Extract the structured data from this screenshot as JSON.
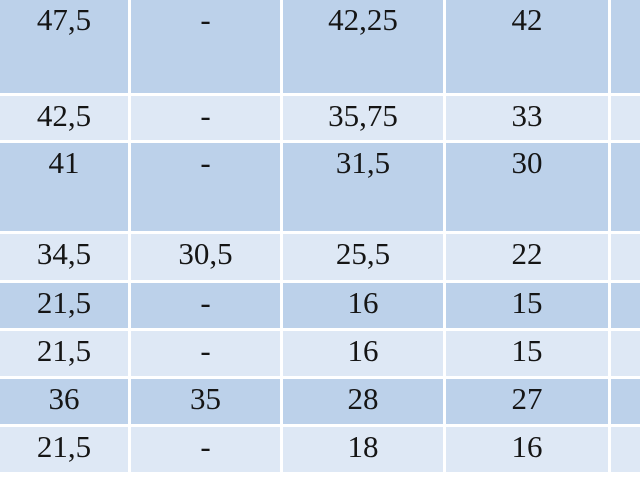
{
  "table": {
    "decimal_separator": ",",
    "num_columns": 5,
    "rows": [
      [
        "47,5",
        "-",
        "42,25",
        "42",
        ""
      ],
      [
        "42,5",
        "-",
        "35,75",
        "33",
        ""
      ],
      [
        "41",
        "-",
        "31,5",
        "30",
        ""
      ],
      [
        "34,5",
        "30,5",
        "25,5",
        "22",
        ""
      ],
      [
        "21,5",
        "-",
        "16",
        "15",
        ""
      ],
      [
        "21,5",
        "-",
        "16",
        "15",
        ""
      ],
      [
        "36",
        "35",
        "28",
        "27",
        ""
      ],
      [
        "21,5",
        "-",
        "18",
        "16",
        ""
      ]
    ],
    "colors": {
      "band_dark": "#bcd1ea",
      "band_light": "#dee8f5",
      "gridline": "#ffffff",
      "text": "#151515"
    }
  }
}
